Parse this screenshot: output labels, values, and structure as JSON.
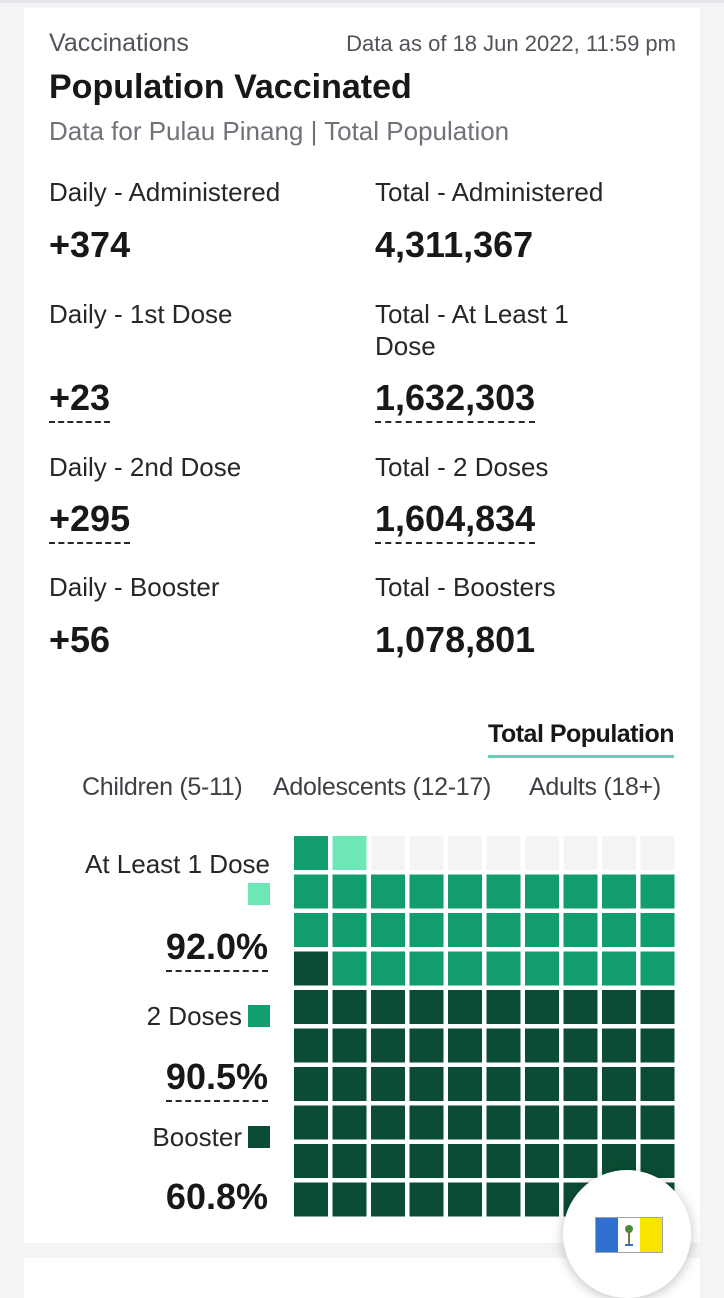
{
  "header": {
    "section": "Vaccinations",
    "as_of": "Data as of 18 Jun 2022, 11:59 pm",
    "title": "Population Vaccinated",
    "subtitle": "Data for Pulau Pinang | Total Population"
  },
  "stats": {
    "daily_administered": {
      "label": "Daily - Administered",
      "value": "+374"
    },
    "total_administered": {
      "label": "Total - Administered",
      "value": "4,311,367"
    },
    "daily_dose1": {
      "label": "Daily - 1st Dose",
      "value": "+23"
    },
    "total_dose1": {
      "label": "Total - At Least 1 Dose",
      "value": "1,632,303"
    },
    "daily_dose2": {
      "label": "Daily - 2nd Dose",
      "value": "+295"
    },
    "total_dose2": {
      "label": "Total - 2 Doses",
      "value": "1,604,834"
    },
    "daily_booster": {
      "label": "Daily - Booster",
      "value": "+56"
    },
    "total_booster": {
      "label": "Total - Boosters",
      "value": "1,078,801"
    }
  },
  "tabs": {
    "active": "Total Population",
    "age_groups": [
      "Children (5-11)",
      "Adolescents (12-17)",
      "Adults (18+)"
    ]
  },
  "colors": {
    "at_least_1": "#6ee7b7",
    "two_doses": "#129d6e",
    "booster": "#0b4d34",
    "empty": "#f4f4f5",
    "tab_underline": "#5fd3b3"
  },
  "chart_data": {
    "type": "waffle",
    "grid": [
      10,
      10
    ],
    "series": [
      {
        "name": "At Least 1 Dose",
        "value": 92.0,
        "label": "92.0%"
      },
      {
        "name": "2 Doses",
        "value": 90.5,
        "label": "90.5%"
      },
      {
        "name": "Booster",
        "value": 60.8,
        "label": "60.8%"
      }
    ]
  },
  "fab": {
    "icon": "penang-flag-icon"
  }
}
